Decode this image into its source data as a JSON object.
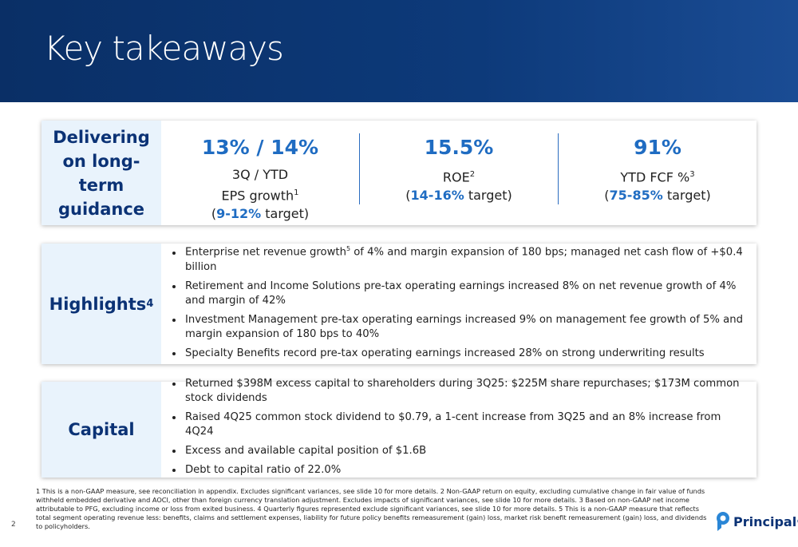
{
  "header": {
    "title": "Key takeaways"
  },
  "guidance": {
    "label": "Delivering on long-term guidance",
    "metrics": [
      {
        "value": "13% / 14%",
        "sub": "3Q / YTD",
        "desc": "EPS growth",
        "sup": "1",
        "target_open": "(",
        "target": "9-12%",
        "target_close": " target)"
      },
      {
        "value": "15.5%",
        "desc": "ROE",
        "sup": "2",
        "target_open": "(",
        "target": "14-16%",
        "target_close": " target)"
      },
      {
        "value": "91%",
        "desc": "YTD FCF %",
        "sup": "3",
        "target_open": "(",
        "target": "75-85%",
        "target_close": " target)"
      }
    ]
  },
  "highlights": {
    "label": "Highlights",
    "sup": "4",
    "bullets": [
      [
        {
          "text": "Enterprise net revenue growth"
        },
        {
          "sup": "5"
        },
        {
          "text": " of 4% and margin expansion of 180 bps; managed net cash flow of +$0.4 billion"
        }
      ],
      [
        {
          "text": "Retirement and Income Solutions pre-tax operating earnings increased 8% on net revenue growth of 4% and margin of 42%"
        }
      ],
      [
        {
          "text": "Investment Management pre-tax operating earnings increased 9% on management fee growth of 5% and margin expansion of 180 bps to 40%"
        }
      ],
      [
        {
          "text": "Specialty Benefits record pre-tax operating earnings increased 28% on strong underwriting results"
        }
      ]
    ]
  },
  "capital": {
    "label": "Capital",
    "bullets": [
      [
        {
          "text": "Returned $398M excess capital to shareholders during 3Q25: $225M share repurchases; $173M common stock dividends"
        }
      ],
      [
        {
          "text": "Raised 4Q25 common stock dividend to $0.79, a 1-cent increase from 3Q25 and an 8% increase from 4Q24"
        }
      ],
      [
        {
          "text": "Excess and available capital position of $1.6B"
        }
      ],
      [
        {
          "text": "Debt to capital ratio of 22.0%"
        }
      ]
    ]
  },
  "footnote": "1 This is a non-GAAP measure, see reconciliation in appendix. Excludes significant variances, see slide 10 for more details. 2 Non-GAAP return on equity, excluding cumulative change in fair value of funds withheld embedded derivative and AOCI, other than foreign currency translation adjustment. Excludes impacts of significant variances, see slide 10 for more details. 3 Based on non-GAAP net income attributable to PFG, excluding income or loss from exited business. 4 Quarterly figures represented exclude significant variances, see slide 10 for more details. 5 This is a non-GAAP measure that reflects total segment operating revenue less: benefits, claims and settlement expenses, liability for future policy benefits remeasurement (gain) loss, market risk benefit remeasurement (gain) loss, and dividends to policyholders.",
  "page_number": "2",
  "logo": {
    "name": "Principal",
    "mark": "®"
  }
}
